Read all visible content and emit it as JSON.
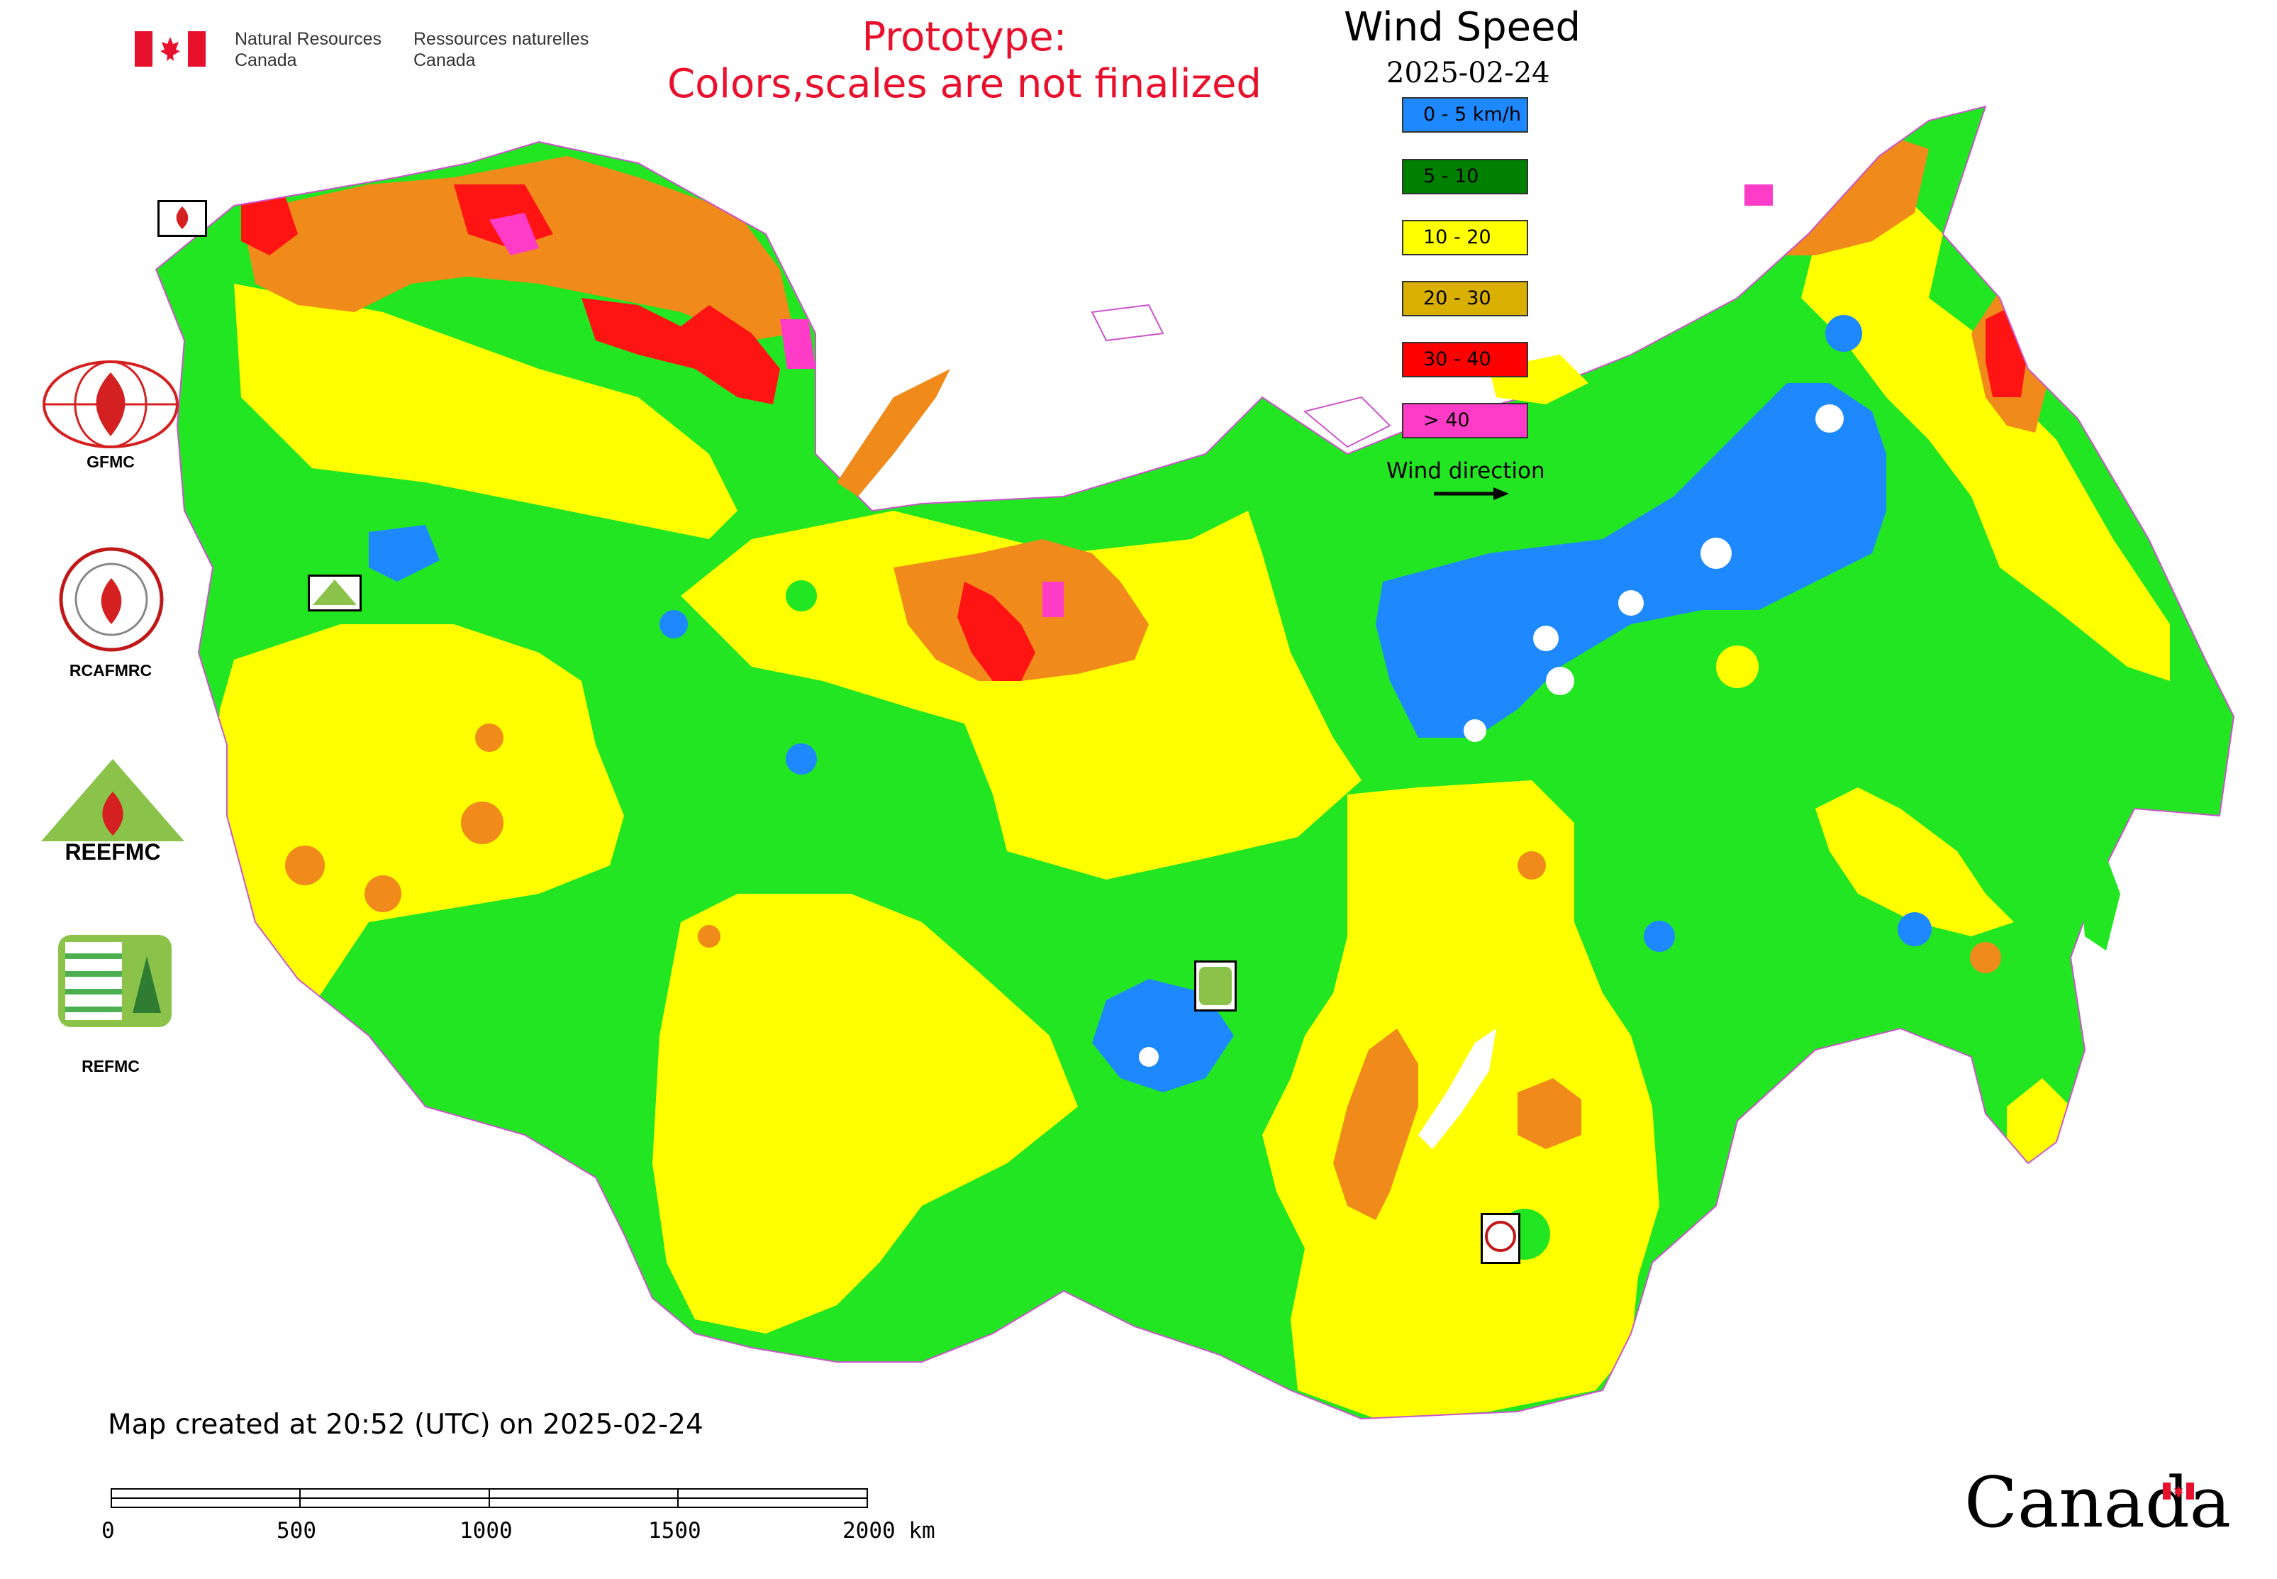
{
  "header": {
    "agency_en": [
      "Natural Resources",
      "Canada"
    ],
    "agency_fr": [
      "Ressources naturelles",
      "Canada"
    ],
    "prototype_notice": [
      "Prototype:",
      "Colors,scales are not finalized"
    ]
  },
  "legend": {
    "title": "Wind Speed",
    "date": "2025-02-24",
    "classes": [
      {
        "label": "0 - 5 km/h",
        "color": "#1e88ff"
      },
      {
        "label": "5 - 10",
        "color": "#008000"
      },
      {
        "label": "10 - 20",
        "color": "#ffff00"
      },
      {
        "label": "20 - 30",
        "color": "#d9b000"
      },
      {
        "label": "30 - 40",
        "color": "#ff0000"
      },
      {
        "label": "> 40",
        "color": "#ff3cc8"
      }
    ],
    "wind_direction_label": "Wind direction"
  },
  "logos": [
    {
      "label": "GFMC",
      "icon": "gfmc-logo-icon"
    },
    {
      "label": "RCAFMRC",
      "icon": "rcafmrc-logo-icon"
    },
    {
      "label": "",
      "icon": "reefmc-logo-icon"
    },
    {
      "label": "REFMC",
      "icon": "refmc-logo-icon"
    }
  ],
  "map_markers": [
    {
      "name": "GFMC",
      "icon": "gfmc-marker-icon"
    },
    {
      "name": "REEFMC",
      "icon": "reefmc-marker-icon"
    },
    {
      "name": "REFMC",
      "icon": "refmc-marker-icon"
    },
    {
      "name": "RCAFMRC",
      "icon": "rcafmrc-marker-icon"
    }
  ],
  "footer": {
    "created": "Map created at 20:52 (UTC) on 2025-02-24"
  },
  "scale_bar": {
    "ticks": [
      "0",
      "500",
      "1000",
      "1500",
      "2000 km"
    ]
  },
  "wordmark": "Canada",
  "colors": {
    "calm": "#1e88ff",
    "light": "#22e622",
    "moderate": "#ffff00",
    "fresh": "#f08a1a",
    "strong": "#ff1414",
    "gale": "#ff3cc8",
    "flag_red": "#e8112d"
  }
}
